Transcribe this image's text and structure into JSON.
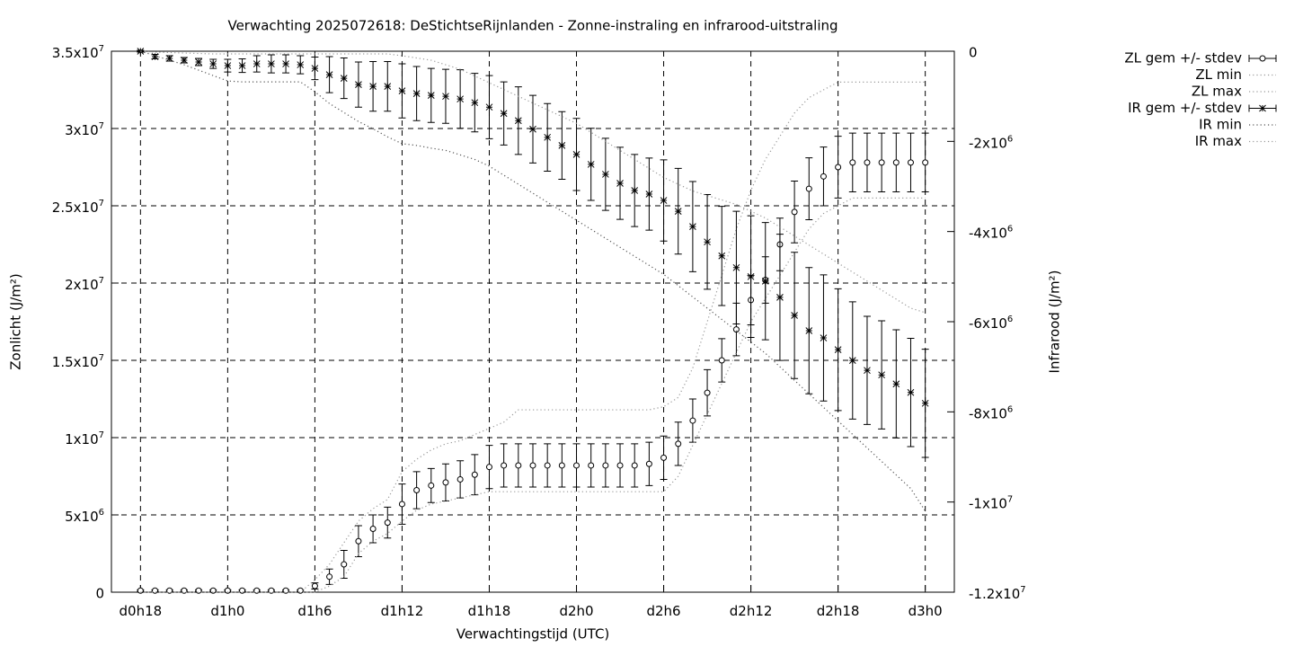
{
  "chart_data": {
    "type": "errorbar",
    "title": "Verwachting 2025072618: DeStichtseRijnlanden - Zonne-instraling en infrarood-uitstraling",
    "x_label": "Verwachtingstijd (UTC)",
    "y_label": "Zonlicht (J/m²)",
    "y2_label": "Infrarood (J/m²)",
    "xlim": [
      16,
      74
    ],
    "xticks": [
      {
        "value": 18,
        "label": "d0h18"
      },
      {
        "value": 24,
        "label": "d1h0"
      },
      {
        "value": 30,
        "label": "d1h6"
      },
      {
        "value": 36,
        "label": "d1h12"
      },
      {
        "value": 42,
        "label": "d1h18"
      },
      {
        "value": 48,
        "label": "d2h0"
      },
      {
        "value": 54,
        "label": "d2h6"
      },
      {
        "value": 60,
        "label": "d2h12"
      },
      {
        "value": 66,
        "label": "d2h18"
      },
      {
        "value": 72,
        "label": "d3h0"
      }
    ],
    "ylim": [
      0,
      35000000.0
    ],
    "yticks": [
      0,
      {
        "value": 5000000.0,
        "label": "5x10",
        "sup": "6"
      },
      {
        "value": 10000000.0,
        "label": "1x10",
        "sup": "7"
      },
      {
        "value": 15000000.0,
        "label": "1.5x10",
        "sup": "7"
      },
      {
        "value": 20000000.0,
        "label": "2x10",
        "sup": "7"
      },
      {
        "value": 25000000.0,
        "label": "2.5x10",
        "sup": "7"
      },
      {
        "value": 30000000.0,
        "label": "3x10",
        "sup": "7"
      },
      {
        "value": 35000000.0,
        "label": "3.5x10",
        "sup": "7"
      }
    ],
    "y2lim": [
      -12000000.0,
      0
    ],
    "y2ticks": [
      {
        "value": -12000000.0,
        "label": "-1.2x10",
        "sup": "7"
      },
      {
        "value": -10000000.0,
        "label": "-1x10",
        "sup": "7"
      },
      {
        "value": -8000000.0,
        "label": "-8x10",
        "sup": "6"
      },
      {
        "value": -6000000.0,
        "label": "-6x10",
        "sup": "6"
      },
      {
        "value": -4000000.0,
        "label": "-4x10",
        "sup": "6"
      },
      {
        "value": -2000000.0,
        "label": "-2x10",
        "sup": "6"
      },
      0
    ],
    "grid": true,
    "legend": "outside-top-right",
    "x": [
      18,
      19,
      20,
      21,
      22,
      23,
      24,
      25,
      26,
      27,
      28,
      29,
      30,
      31,
      32,
      33,
      34,
      35,
      36,
      37,
      38,
      39,
      40,
      41,
      42,
      43,
      44,
      45,
      46,
      47,
      48,
      49,
      50,
      51,
      52,
      53,
      54,
      55,
      56,
      57,
      58,
      59,
      60,
      61,
      62,
      63,
      64,
      65,
      66,
      67,
      68,
      69,
      70,
      71,
      72
    ],
    "series": [
      {
        "name": "ZL gem +/- stdev",
        "color": "#000000",
        "style": "errorbars",
        "marker": "circle",
        "values": [
          100000.0,
          100000.0,
          100000.0,
          100000.0,
          100000.0,
          100000.0,
          100000.0,
          100000.0,
          100000.0,
          100000.0,
          100000.0,
          100000.0,
          400000.0,
          1000000.0,
          1800000.0,
          3300000.0,
          4100000.0,
          4500000.0,
          5700000.0,
          6600000.0,
          6900000.0,
          7100000.0,
          7300000.0,
          7600000.0,
          8100000.0,
          8200000.0,
          8200000.0,
          8200000.0,
          8200000.0,
          8200000.0,
          8200000.0,
          8200000.0,
          8200000.0,
          8200000.0,
          8200000.0,
          8300000.0,
          8700000.0,
          9600000.0,
          11100000.0,
          12900000.0,
          15000000.0,
          17000000.0,
          18900000.0,
          20200000.0,
          22500000.0,
          24600000.0,
          26100000.0,
          26900000.0,
          27500000.0,
          27800000.0,
          27800000.0,
          27800000.0,
          27800000.0,
          27800000.0,
          27800000.0
        ],
        "errors": [
          50000.0,
          50000.0,
          50000.0,
          50000.0,
          50000.0,
          50000.0,
          50000.0,
          50000.0,
          50000.0,
          50000.0,
          50000.0,
          50000.0,
          200000.0,
          500000.0,
          900000.0,
          1000000.0,
          900000.0,
          1000000.0,
          1300000.0,
          1200000.0,
          1100000.0,
          1200000.0,
          1200000.0,
          1300000.0,
          1400000.0,
          1400000.0,
          1400000.0,
          1400000.0,
          1400000.0,
          1400000.0,
          1400000.0,
          1400000.0,
          1400000.0,
          1400000.0,
          1400000.0,
          1400000.0,
          1400000.0,
          1400000.0,
          1400000.0,
          1500000.0,
          1400000.0,
          1700000.0,
          1600000.0,
          1500000.0,
          1700000.0,
          2000000.0,
          2000000.0,
          1900000.0,
          2000000.0,
          1900000.0,
          1900000.0,
          1900000.0,
          1900000.0,
          1900000.0,
          1900000.0
        ]
      },
      {
        "name": "ZL min",
        "color": "#999999",
        "style": "dotted",
        "values": [
          0,
          0,
          0,
          0,
          0,
          0,
          0,
          0,
          0,
          0,
          0,
          0,
          0,
          400000.0,
          1000000.0,
          2500000.0,
          3300000.0,
          3800000.0,
          4600000.0,
          5300000.0,
          5700000.0,
          5900000.0,
          6100000.0,
          6300000.0,
          6500000.0,
          6500000.0,
          6500000.0,
          6500000.0,
          6500000.0,
          6500000.0,
          6500000.0,
          6500000.0,
          6500000.0,
          6500000.0,
          6500000.0,
          6500000.0,
          6500000.0,
          7500000.0,
          9500000.0,
          11500000.0,
          13500000.0,
          15500000.0,
          17500000.0,
          19000000.0,
          20500000.0,
          22000000.0,
          23500000.0,
          24500000.0,
          25000000.0,
          25500000.0,
          25500000.0,
          25500000.0,
          25500000.0,
          25500000.0,
          25500000.0
        ]
      },
      {
        "name": "ZL max",
        "color": "#999999",
        "style": "dotted",
        "values": [
          0,
          0,
          0,
          0,
          0,
          0,
          0,
          0,
          0,
          0,
          0,
          0,
          800000.0,
          1800000.0,
          3200000.0,
          4600000.0,
          5400000.0,
          6000000.0,
          7800000.0,
          8600000.0,
          9200000.0,
          9600000.0,
          9800000.0,
          10200000.0,
          10600000.0,
          11000000.0,
          11800000.0,
          11800000.0,
          11800000.0,
          11800000.0,
          11800000.0,
          11800000.0,
          11800000.0,
          11800000.0,
          11800000.0,
          11800000.0,
          12000000.0,
          12600000.0,
          14500000.0,
          17500000.0,
          20500000.0,
          23500000.0,
          26000000.0,
          28000000.0,
          29500000.0,
          31000000.0,
          32000000.0,
          32500000.0,
          33000000.0,
          33000000.0,
          33000000.0,
          33000000.0,
          33000000.0,
          33000000.0,
          33000000.0
        ]
      },
      {
        "name": "IR gem +/- stdev",
        "color": "#000000",
        "style": "errorbars",
        "marker": "star",
        "axis": "y2",
        "values": [
          0,
          -120000.0,
          -160000.0,
          -200000.0,
          -240000.0,
          -280000.0,
          -320000.0,
          -320000.0,
          -280000.0,
          -280000.0,
          -280000.0,
          -300000.0,
          -380000.0,
          -520000.0,
          -600000.0,
          -740000.0,
          -780000.0,
          -780000.0,
          -880000.0,
          -940000.0,
          -980000.0,
          -1000000.0,
          -1060000.0,
          -1140000.0,
          -1240000.0,
          -1380000.0,
          -1540000.0,
          -1730000.0,
          -1910000.0,
          -2090000.0,
          -2290000.0,
          -2510000.0,
          -2730000.0,
          -2930000.0,
          -3090000.0,
          -3170000.0,
          -3310000.0,
          -3550000.0,
          -3890000.0,
          -4230000.0,
          -4540000.0,
          -4800000.0,
          -5000000.0,
          -5100000.0,
          -5460000.0,
          -5860000.0,
          -6200000.0,
          -6360000.0,
          -6620000.0,
          -6860000.0,
          -7080000.0,
          -7180000.0,
          -7380000.0,
          -7570000.0,
          -7810000.0
        ],
        "errors": [
          20000.0,
          50000.0,
          60000.0,
          60000.0,
          80000.0,
          100000.0,
          140000.0,
          150000.0,
          180000.0,
          200000.0,
          200000.0,
          200000.0,
          250000.0,
          400000.0,
          450000.0,
          500000.0,
          550000.0,
          550000.0,
          600000.0,
          600000.0,
          600000.0,
          600000.0,
          650000.0,
          650000.0,
          700000.0,
          700000.0,
          750000.0,
          750000.0,
          750000.0,
          750000.0,
          800000.0,
          800000.0,
          800000.0,
          800000.0,
          800000.0,
          800000.0,
          900000.0,
          950000.0,
          1000000.0,
          1050000.0,
          1100000.0,
          1250000.0,
          1350000.0,
          1300000.0,
          1400000.0,
          1400000.0,
          1400000.0,
          1400000.0,
          1350000.0,
          1300000.0,
          1200000.0,
          1200000.0,
          1200000.0,
          1200000.0,
          1200000.0
        ]
      },
      {
        "name": "IR min",
        "color": "#555555",
        "style": "dotted",
        "axis": "y2",
        "values": [
          0,
          -100000.0,
          -200000.0,
          -300000.0,
          -420000.0,
          -540000.0,
          -660000.0,
          -680000.0,
          -680000.0,
          -680000.0,
          -680000.0,
          -680000.0,
          -900000.0,
          -1160000.0,
          -1360000.0,
          -1560000.0,
          -1720000.0,
          -1900000.0,
          -2050000.0,
          -2090000.0,
          -2150000.0,
          -2200000.0,
          -2300000.0,
          -2400000.0,
          -2550000.0,
          -2750000.0,
          -2950000.0,
          -3150000.0,
          -3350000.0,
          -3550000.0,
          -3750000.0,
          -3950000.0,
          -4150000.0,
          -4350000.0,
          -4550000.0,
          -4750000.0,
          -4950000.0,
          -5200000.0,
          -5450000.0,
          -5700000.0,
          -5950000.0,
          -6200000.0,
          -6450000.0,
          -6700000.0,
          -7000000.0,
          -7300000.0,
          -7600000.0,
          -7900000.0,
          -8200000.0,
          -8500000.0,
          -8800000.0,
          -9100000.0,
          -9400000.0,
          -9700000.0,
          -10200000.0
        ]
      },
      {
        "name": "IR max",
        "color": "#999999",
        "style": "dotted",
        "axis": "y2",
        "values": [
          0,
          -20000.0,
          -30000.0,
          -40000.0,
          -50000.0,
          -60000.0,
          -60000.0,
          -60000.0,
          -60000.0,
          -60000.0,
          -60000.0,
          -60000.0,
          -60000.0,
          -60000.0,
          -60000.0,
          -60000.0,
          -60000.0,
          -60000.0,
          -100000.0,
          -150000.0,
          -200000.0,
          -300000.0,
          -400000.0,
          -550000.0,
          -700000.0,
          -850000.0,
          -1000000.0,
          -1150000.0,
          -1300000.0,
          -1450000.0,
          -1600000.0,
          -1800000.0,
          -2000000.0,
          -2200000.0,
          -2400000.0,
          -2600000.0,
          -2800000.0,
          -2950000.0,
          -3100000.0,
          -3200000.0,
          -3300000.0,
          -3400000.0,
          -3550000.0,
          -3700000.0,
          -3900000.0,
          -4100000.0,
          -4300000.0,
          -4500000.0,
          -4700000.0,
          -4900000.0,
          -5100000.0,
          -5300000.0,
          -5500000.0,
          -5700000.0,
          -5800000.0
        ]
      }
    ]
  }
}
